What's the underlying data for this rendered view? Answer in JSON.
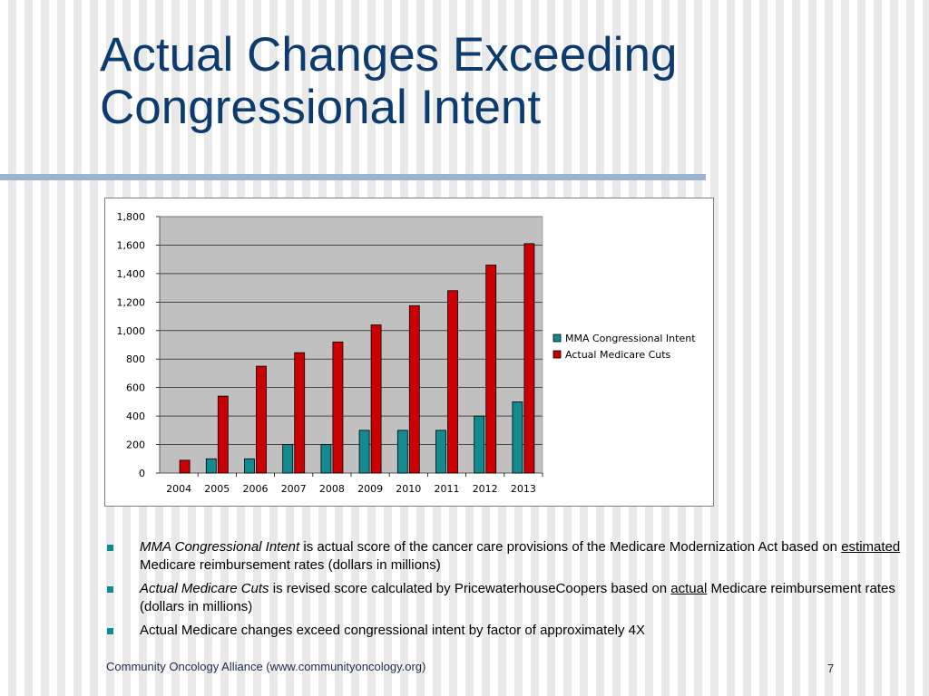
{
  "slide": {
    "title_line1": "Actual Changes Exceeding",
    "title_line2": "Congressional Intent",
    "footer": "Community Oncology Alliance (www.communityoncology.org)",
    "page_number": "7"
  },
  "bullets": [
    {
      "em": "MMA Congressional Intent",
      "t1": " is actual score of the cancer care provisions of the Medicare Modernization Act based on ",
      "u": "estimated",
      "t2": " Medicare reimbursement rates (dollars in millions)"
    },
    {
      "em": "Actual Medicare Cuts",
      "t1": " is revised score calculated by PricewaterhouseCoopers based on ",
      "u": "actual",
      "t2": " Medicare reimbursement rates (dollars in millions)"
    },
    {
      "text": "Actual Medicare changes exceed congressional intent by factor of approximately 4X"
    }
  ],
  "colors": {
    "title": "#0d3b6e",
    "rule": "#9bb4cf",
    "bullet": "#138a8f",
    "plot_bg": "#c0c0c0"
  },
  "chart_data": {
    "type": "bar",
    "categories": [
      "2004",
      "2005",
      "2006",
      "2007",
      "2008",
      "2009",
      "2010",
      "2011",
      "2012",
      "2013"
    ],
    "series": [
      {
        "name": "MMA Congressional Intent",
        "color": "#138a8f",
        "values": [
          0,
          100,
          100,
          200,
          200,
          300,
          300,
          300,
          400,
          500
        ]
      },
      {
        "name": "Actual Medicare Cuts",
        "color": "#cc0000",
        "values": [
          90,
          540,
          750,
          845,
          920,
          1040,
          1175,
          1280,
          1460,
          1610
        ]
      }
    ],
    "yticks": [
      "0",
      "200",
      "400",
      "600",
      "800",
      "1,000",
      "1,200",
      "1,400",
      "1,600",
      "1,800"
    ],
    "ylim": [
      0,
      1800
    ],
    "grid": true,
    "legend": "right",
    "title": "",
    "xlabel": "",
    "ylabel": ""
  }
}
